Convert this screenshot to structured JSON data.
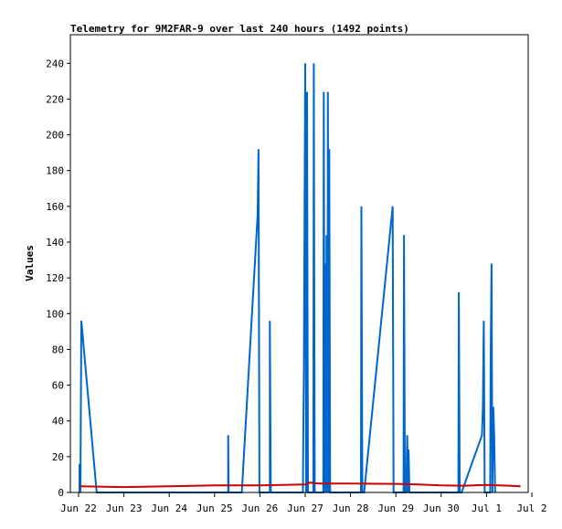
{
  "chart_data": {
    "type": "line",
    "title": "Telemetry for 9M2FAR-9 over last 240 hours (1492 points)",
    "xlabel": "",
    "ylabel": "Values",
    "x_tick_labels": [
      "Jun 22",
      "Jun 23",
      "Jun 24",
      "Jun 25",
      "Jun 26",
      "Jun 27",
      "Jun 28",
      "Jun 29",
      "Jun 30",
      "Jul 1",
      "Jul 2"
    ],
    "y_ticks": [
      0,
      20,
      40,
      60,
      80,
      100,
      120,
      140,
      160,
      180,
      200,
      220,
      240
    ],
    "xlim": [
      -0.1,
      10
    ],
    "ylim": [
      0,
      256
    ],
    "grid": false,
    "legend": "none",
    "series": [
      {
        "color": "#0066cc",
        "points": [
          [
            0.02,
            0
          ],
          [
            0.02,
            16
          ],
          [
            0.04,
            0
          ],
          [
            0.06,
            96
          ],
          [
            0.4,
            0
          ],
          [
            3.3,
            0
          ],
          [
            3.3,
            32
          ],
          [
            3.31,
            0
          ],
          [
            3.6,
            0
          ],
          [
            3.95,
            155
          ],
          [
            3.97,
            192
          ],
          [
            3.99,
            0
          ],
          [
            4.22,
            0
          ],
          [
            4.22,
            96
          ],
          [
            4.24,
            0
          ],
          [
            4.95,
            0
          ],
          [
            4.96,
            40
          ],
          [
            4.97,
            66
          ],
          [
            5.0,
            240
          ],
          [
            5.02,
            0
          ],
          [
            5.04,
            224
          ],
          [
            5.06,
            0
          ],
          [
            5.18,
            0
          ],
          [
            5.19,
            240
          ],
          [
            5.21,
            0
          ],
          [
            5.4,
            0
          ],
          [
            5.41,
            224
          ],
          [
            5.43,
            0
          ],
          [
            5.44,
            128
          ],
          [
            5.46,
            0
          ],
          [
            5.47,
            144
          ],
          [
            5.49,
            0
          ],
          [
            5.5,
            224
          ],
          [
            5.52,
            0
          ],
          [
            5.53,
            192
          ],
          [
            5.55,
            0
          ],
          [
            6.23,
            0
          ],
          [
            6.24,
            160
          ],
          [
            6.26,
            0
          ],
          [
            6.3,
            0
          ],
          [
            6.93,
            160
          ],
          [
            6.95,
            0
          ],
          [
            7.17,
            0
          ],
          [
            7.18,
            144
          ],
          [
            7.2,
            0
          ],
          [
            7.23,
            0
          ],
          [
            7.25,
            32
          ],
          [
            7.27,
            0
          ],
          [
            7.28,
            24
          ],
          [
            7.3,
            0
          ],
          [
            8.38,
            0
          ],
          [
            8.39,
            112
          ],
          [
            8.41,
            0
          ],
          [
            8.45,
            0
          ],
          [
            8.9,
            32
          ],
          [
            8.92,
            48
          ],
          [
            8.94,
            96
          ],
          [
            8.96,
            0
          ],
          [
            9.08,
            0
          ],
          [
            9.09,
            72
          ],
          [
            9.11,
            128
          ],
          [
            9.13,
            0
          ],
          [
            9.15,
            48
          ],
          [
            9.17,
            32
          ],
          [
            9.19,
            0
          ]
        ]
      },
      {
        "color": "#cc0000",
        "points": [
          [
            0.02,
            3.5
          ],
          [
            1.0,
            3.0
          ],
          [
            2.0,
            3.5
          ],
          [
            3.0,
            4.0
          ],
          [
            4.0,
            4.0
          ],
          [
            5.0,
            4.5
          ],
          [
            5.1,
            5.5
          ],
          [
            5.3,
            5.0
          ],
          [
            6.0,
            5.0
          ],
          [
            7.0,
            4.8
          ],
          [
            7.5,
            4.5
          ],
          [
            8.0,
            4.0
          ],
          [
            8.5,
            3.8
          ],
          [
            9.0,
            4.2
          ],
          [
            9.5,
            3.8
          ],
          [
            9.75,
            3.5
          ]
        ]
      }
    ]
  }
}
